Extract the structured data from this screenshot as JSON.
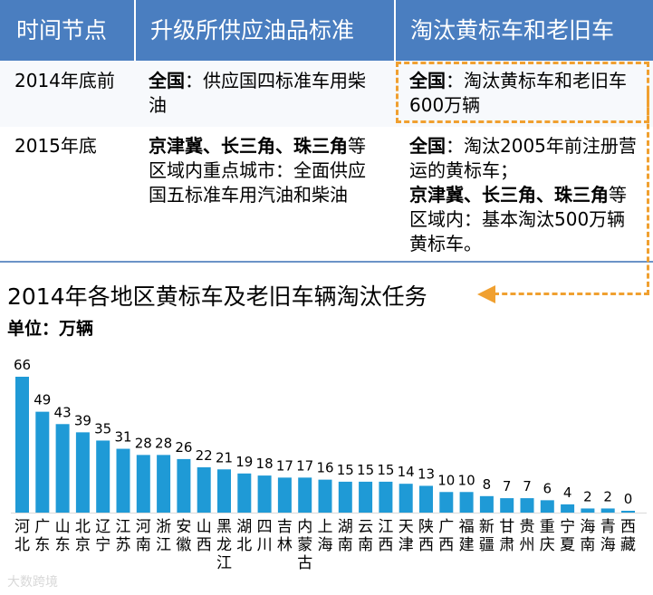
{
  "table": {
    "headers": [
      "时间节点",
      "升级所供应油品标准",
      "淘汰黄标车和老旧车"
    ],
    "rows": [
      {
        "time": "2014年底前",
        "fuel_bold": "全国",
        "fuel_text": "：供应国四标准车用柴油",
        "elim_bold": "全国",
        "elim_text": "：淘汰黄标车和老旧车600万辆"
      },
      {
        "time": "2015年底",
        "fuel_bold": "京津冀、长三角、珠三角",
        "fuel_text": "等区域内重点城市：全面供应国五标准车用汽油和柴油",
        "elim_bold": "全国",
        "elim_text": "：淘汰2005年前注册营运的黄标车；",
        "elim_bold2": "京津冀、长三角、珠三角",
        "elim_text2": "等区域内：基本淘汰500万辆黄标车。"
      }
    ]
  },
  "chart_data": {
    "type": "bar",
    "title": "2014年各地区黄标车及老旧车辆淘汰任务",
    "unit": "单位：万辆",
    "categories": [
      "河北",
      "广东",
      "山东",
      "北京",
      "辽宁",
      "江苏",
      "河南",
      "浙江",
      "安徽",
      "山西",
      "黑龙江",
      "湖北",
      "四川",
      "吉林",
      "内蒙古",
      "上海",
      "湖南",
      "云南",
      "江西",
      "天津",
      "陕西",
      "广西",
      "福建",
      "新疆",
      "甘肃",
      "贵州",
      "重庆",
      "宁夏",
      "海南",
      "青海",
      "西藏"
    ],
    "values": [
      66,
      49,
      43,
      39,
      35,
      31,
      28,
      28,
      26,
      22,
      21,
      19,
      18,
      17,
      17,
      16,
      15,
      15,
      15,
      14,
      13,
      10,
      10,
      8,
      7,
      7,
      6,
      4,
      2,
      2,
      0
    ],
    "color": "#1f9ad6",
    "ylim": [
      0,
      66
    ]
  },
  "colors": {
    "header_bg": "#4a7ec0",
    "dash": "#f0a030",
    "bar": "#1f9ad6"
  },
  "watermark": "大数跨境"
}
